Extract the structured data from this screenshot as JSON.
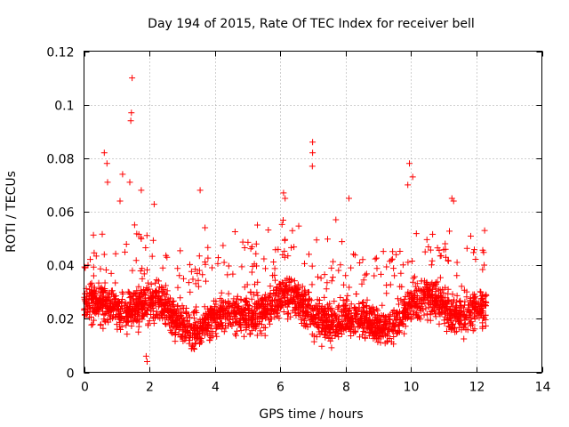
{
  "chart_data": {
    "type": "scatter",
    "title": "Day 194 of 2015, Rate Of TEC Index for receiver bell",
    "xlabel": "GPS time / hours",
    "ylabel": "ROTI / TECUs",
    "xlim": [
      0,
      14
    ],
    "ylim": [
      0,
      0.12
    ],
    "xticks": [
      0,
      2,
      4,
      6,
      8,
      10,
      12,
      14
    ],
    "xtick_labels": [
      "0",
      "2",
      "4",
      "6",
      "8",
      "10",
      "12",
      "14"
    ],
    "yticks": [
      0,
      0.02,
      0.04,
      0.06,
      0.08,
      0.1,
      0.12
    ],
    "ytick_labels": [
      "0",
      "0.02",
      "0.04",
      "0.06",
      "0.08",
      "0.1",
      "0.12"
    ],
    "grid": true,
    "marker": "+",
    "marker_color": "#ff0000",
    "series": [
      {
        "name": "ROTI",
        "x_range": [
          0.0,
          12.3
        ],
        "typical_range": [
          0.01,
          0.035
        ],
        "notable_points": [
          {
            "x": 1.47,
            "y": 0.11
          },
          {
            "x": 1.45,
            "y": 0.097
          },
          {
            "x": 1.43,
            "y": 0.094
          },
          {
            "x": 1.4,
            "y": 0.071
          },
          {
            "x": 0.62,
            "y": 0.082
          },
          {
            "x": 0.7,
            "y": 0.078
          },
          {
            "x": 0.72,
            "y": 0.071
          },
          {
            "x": 1.18,
            "y": 0.074
          },
          {
            "x": 1.1,
            "y": 0.064
          },
          {
            "x": 1.75,
            "y": 0.068
          },
          {
            "x": 3.55,
            "y": 0.068
          },
          {
            "x": 3.7,
            "y": 0.054
          },
          {
            "x": 6.1,
            "y": 0.067
          },
          {
            "x": 6.15,
            "y": 0.065
          },
          {
            "x": 6.99,
            "y": 0.086
          },
          {
            "x": 6.99,
            "y": 0.082
          },
          {
            "x": 6.98,
            "y": 0.077
          },
          {
            "x": 8.1,
            "y": 0.065
          },
          {
            "x": 9.95,
            "y": 0.078
          },
          {
            "x": 10.05,
            "y": 0.073
          },
          {
            "x": 9.9,
            "y": 0.07
          },
          {
            "x": 11.25,
            "y": 0.065
          },
          {
            "x": 11.3,
            "y": 0.064
          },
          {
            "x": 5.3,
            "y": 0.055
          },
          {
            "x": 7.7,
            "y": 0.057
          },
          {
            "x": 12.25,
            "y": 0.053
          },
          {
            "x": 1.93,
            "y": 0.004
          },
          {
            "x": 1.9,
            "y": 0.006
          }
        ]
      }
    ]
  }
}
